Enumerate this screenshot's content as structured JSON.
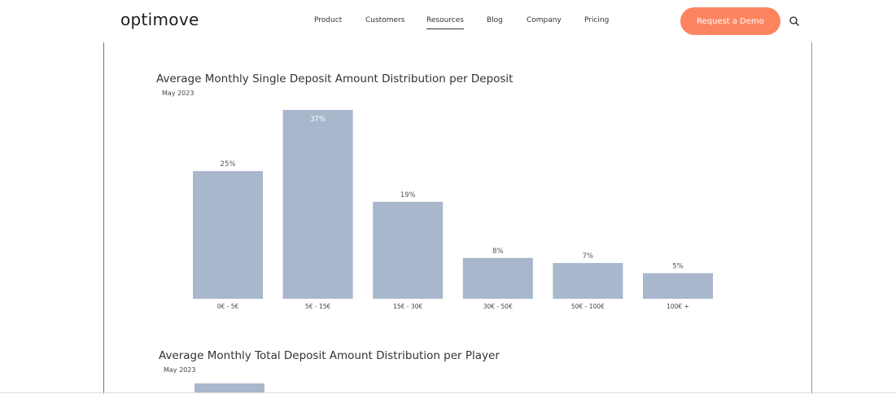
{
  "header": {
    "logo": "optimove",
    "nav": [
      "Product",
      "Customers",
      "Resources",
      "Blog",
      "Company",
      "Pricing"
    ],
    "active_nav": "Resources",
    "cta_label": "Request a Demo",
    "cta_color": "#fc8560"
  },
  "charts": [
    {
      "title": "Average Monthly Single Deposit Amount Distribution per Deposit",
      "subtitle": "May 2023"
    },
    {
      "title": "Average Monthly Total Deposit Amount Distribution per Player",
      "subtitle": "May 2023"
    }
  ],
  "chart_data": [
    {
      "type": "bar",
      "title": "Average Monthly Single Deposit Amount Distribution per Deposit",
      "subtitle": "May 2023",
      "categories": [
        "0€ - 5€",
        "5€ - 15€",
        "15€ - 30€",
        "30€ - 50€",
        "50€ - 100€",
        "100€ +"
      ],
      "values": [
        25,
        37,
        19,
        8,
        7,
        5
      ],
      "value_labels": [
        "25%",
        "37%",
        "19%",
        "8%",
        "7%",
        "5%"
      ],
      "unit": "%",
      "bar_color": "#a8b7cc",
      "ylim": [
        0,
        37
      ],
      "grid": false
    },
    {
      "type": "bar",
      "title": "Average Monthly Total Deposit Amount Distribution per Player",
      "subtitle": "May 2023",
      "categories": [],
      "values": [],
      "bar_color": "#a8b7cc",
      "grid": false
    }
  ]
}
